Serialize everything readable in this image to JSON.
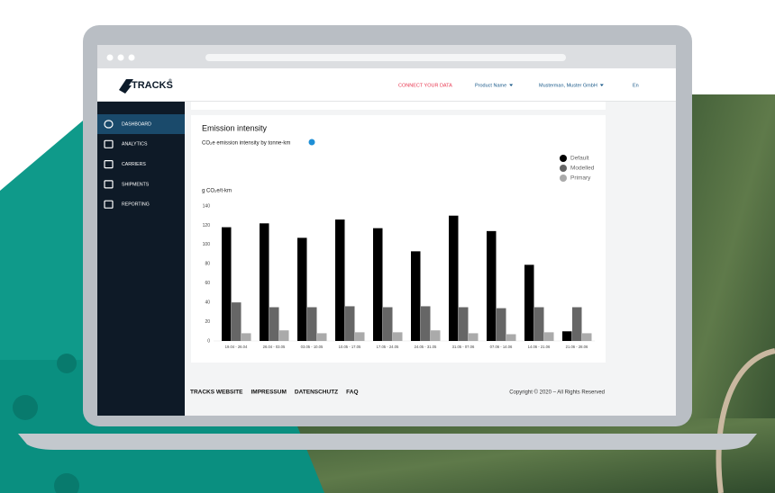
{
  "header": {
    "logo": "TRACKS",
    "logo_mark": "®",
    "nav": [
      "CONNECT YOUR DATA",
      "Product Name",
      "Musterman, Muster GmbH",
      "En"
    ]
  },
  "sidebar": {
    "items": [
      "DASHBOARD",
      "ANALYTICS",
      "CARRIERS",
      "SHIPMENTS",
      "REPORTING"
    ]
  },
  "chart_data": {
    "type": "bar",
    "title": "Emission intensity",
    "subtitle": "CO₂e emission intensity by tonne-km",
    "y_label": "g CO₂e/t-km",
    "categories": [
      "19.04 - 26.04",
      "26.04 - 03.05",
      "03.05 - 10.05",
      "10.05 - 17.05",
      "17.05 - 24.05",
      "24.05 - 31.05",
      "31.05 - 07.06",
      "07.06 - 14.06",
      "14.06 - 21.06",
      "21.06 - 28.06"
    ],
    "series": [
      {
        "name": "Default",
        "color": "#000000",
        "values": [
          118,
          122,
          107,
          126,
          117,
          93,
          130,
          114,
          79,
          10
        ]
      },
      {
        "name": "Modelled",
        "color": "#666666",
        "values": [
          40,
          35,
          35,
          36,
          35,
          36,
          35,
          34,
          35,
          35
        ]
      },
      {
        "name": "Primary",
        "color": "#aaaaaa",
        "values": [
          8,
          11,
          8,
          9,
          9,
          11,
          8,
          7,
          9,
          8
        ]
      }
    ],
    "ylim": [
      0,
      140
    ],
    "yticks": [
      0,
      20,
      40,
      60,
      80,
      100,
      120,
      140
    ],
    "grid": false,
    "legend": "top-right"
  },
  "footer": {
    "links": [
      "TRACKS WEBSITE",
      "IMPRESSUM",
      "DATENSCHUTZ",
      "FAQ"
    ],
    "copyright": "Copyright © 2020 – All Rights Reserved"
  }
}
